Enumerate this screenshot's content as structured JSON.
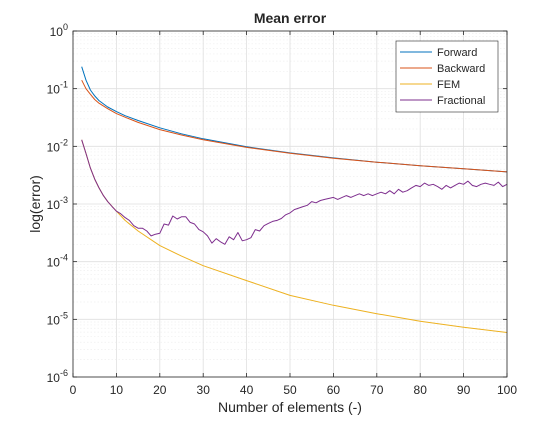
{
  "chart_data": {
    "type": "line",
    "title": "Mean error",
    "xlabel": "Number of elements (-)",
    "ylabel": "log(error)",
    "x_scale": "linear",
    "y_scale": "log",
    "xlim": [
      0,
      100
    ],
    "ylim": [
      1e-06,
      1
    ],
    "x_ticks": [
      0,
      10,
      20,
      30,
      40,
      50,
      60,
      70,
      80,
      90,
      100
    ],
    "y_ticks": [
      {
        "value": 1,
        "base": "10",
        "exp": "0"
      },
      {
        "value": 0.1,
        "base": "10",
        "exp": "-1"
      },
      {
        "value": 0.01,
        "base": "10",
        "exp": "-2"
      },
      {
        "value": 0.001,
        "base": "10",
        "exp": "-3"
      },
      {
        "value": 0.0001,
        "base": "10",
        "exp": "-4"
      },
      {
        "value": 1e-05,
        "base": "10",
        "exp": "-5"
      },
      {
        "value": 1e-06,
        "base": "10",
        "exp": "-6"
      }
    ],
    "grid": true,
    "minor_grid": true,
    "legend_position": "top-right",
    "series": [
      {
        "name": "Forward",
        "color": "#0072BD",
        "x": [
          2,
          3,
          4,
          5,
          6,
          8,
          10,
          12,
          15,
          20,
          25,
          30,
          40,
          50,
          60,
          70,
          80,
          90,
          100
        ],
        "y": [
          0.24,
          0.14,
          0.095,
          0.075,
          0.062,
          0.048,
          0.04,
          0.034,
          0.028,
          0.021,
          0.0165,
          0.0135,
          0.0098,
          0.0077,
          0.0063,
          0.0053,
          0.0046,
          0.0041,
          0.0036
        ]
      },
      {
        "name": "Backward",
        "color": "#D95319",
        "x": [
          2,
          3,
          4,
          5,
          6,
          8,
          10,
          12,
          15,
          20,
          25,
          30,
          40,
          50,
          60,
          70,
          80,
          90,
          100
        ],
        "y": [
          0.14,
          0.1,
          0.08,
          0.065,
          0.056,
          0.045,
          0.037,
          0.032,
          0.026,
          0.0195,
          0.0157,
          0.013,
          0.0096,
          0.0076,
          0.0062,
          0.0053,
          0.0046,
          0.0041,
          0.0036
        ]
      },
      {
        "name": "FEM",
        "color": "#EDB120",
        "x": [
          2,
          3,
          4,
          5,
          6,
          7,
          8,
          10,
          12,
          15,
          20,
          25,
          30,
          40,
          50,
          60,
          70,
          80,
          90,
          100
        ],
        "y": [
          0.013,
          0.0075,
          0.0042,
          0.0027,
          0.0019,
          0.0014,
          0.0011,
          0.00075,
          0.00052,
          0.00034,
          0.00019,
          0.000125,
          8.5e-05,
          4.7e-05,
          2.6e-05,
          1.75e-05,
          1.25e-05,
          9.3e-06,
          7.3e-06,
          5.9e-06
        ]
      },
      {
        "name": "Fractional",
        "color": "#7E2F8E",
        "x": [
          2,
          3,
          4,
          5,
          6,
          7,
          8,
          9,
          10,
          11,
          12,
          13,
          14,
          15,
          16,
          17,
          18,
          19,
          20,
          21,
          22,
          23,
          24,
          25,
          26,
          27,
          28,
          29,
          30,
          31,
          32,
          33,
          34,
          35,
          36,
          37,
          38,
          39,
          40,
          41,
          42,
          43,
          44,
          45,
          46,
          47,
          48,
          49,
          50,
          51,
          52,
          53,
          54,
          55,
          56,
          57,
          58,
          59,
          60,
          61,
          62,
          63,
          64,
          65,
          66,
          67,
          68,
          69,
          70,
          71,
          72,
          73,
          74,
          75,
          76,
          77,
          78,
          79,
          80,
          81,
          82,
          83,
          84,
          85,
          86,
          87,
          88,
          89,
          90,
          91,
          92,
          93,
          94,
          95,
          96,
          97,
          98,
          99,
          100
        ],
        "y": [
          0.013,
          0.0075,
          0.0042,
          0.0027,
          0.0019,
          0.0014,
          0.0011,
          0.0009,
          0.00075,
          0.00068,
          0.00058,
          0.00052,
          0.00042,
          0.00038,
          0.00038,
          0.00034,
          0.00028,
          0.0003,
          0.00031,
          0.00045,
          0.00043,
          0.00062,
          0.00055,
          0.0006,
          0.0006,
          0.00048,
          0.00045,
          0.00036,
          0.00033,
          0.00028,
          0.00021,
          0.00025,
          0.00022,
          0.0002,
          0.00027,
          0.00024,
          0.00032,
          0.00023,
          0.00024,
          0.00026,
          0.00036,
          0.00034,
          0.00042,
          0.00046,
          0.0005,
          0.00052,
          0.00056,
          0.00065,
          0.0007,
          0.0008,
          0.00085,
          0.0009,
          0.00095,
          0.0011,
          0.00105,
          0.00115,
          0.0012,
          0.00125,
          0.0013,
          0.0012,
          0.0013,
          0.0014,
          0.0013,
          0.0014,
          0.0015,
          0.0014,
          0.0015,
          0.0014,
          0.0015,
          0.0016,
          0.0015,
          0.0017,
          0.0015,
          0.0018,
          0.0016,
          0.0017,
          0.0019,
          0.0021,
          0.002,
          0.0023,
          0.0021,
          0.0022,
          0.002,
          0.0018,
          0.0021,
          0.0019,
          0.0021,
          0.0023,
          0.0022,
          0.0025,
          0.0021,
          0.002,
          0.0022,
          0.0023,
          0.0022,
          0.0021,
          0.0024,
          0.002,
          0.0022
        ]
      }
    ]
  },
  "colors": {
    "axis": "#262626",
    "grid": "#dfdfdf",
    "minor_grid": "#efefef",
    "background": "#ffffff"
  }
}
